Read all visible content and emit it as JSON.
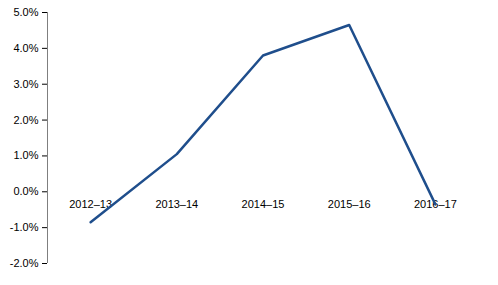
{
  "chart_data": {
    "type": "line",
    "categories": [
      "2012–13",
      "2013–14",
      "2014–15",
      "2015–16",
      "2016–17"
    ],
    "values": [
      -0.85,
      1.05,
      3.8,
      4.65,
      -0.35
    ],
    "color": "#1f4e8c",
    "ylim": [
      -2,
      5
    ],
    "yticks": [
      {
        "value": -2,
        "label": "-2.0%"
      },
      {
        "value": -1,
        "label": "-1.0%"
      },
      {
        "value": 0,
        "label": "0.0%"
      },
      {
        "value": 1,
        "label": "1.0%"
      },
      {
        "value": 2,
        "label": "2.0%"
      },
      {
        "value": 3,
        "label": "3.0%"
      },
      {
        "value": 4,
        "label": "4.0%"
      },
      {
        "value": 5,
        "label": "5.0%"
      }
    ],
    "grid": false
  }
}
